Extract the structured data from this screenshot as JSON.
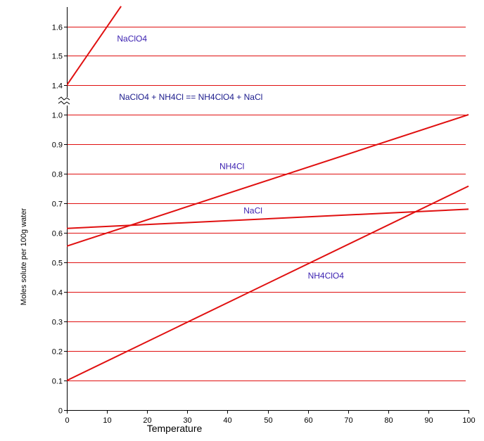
{
  "chart_data": {
    "type": "line",
    "xlabel": "Temperature",
    "ylabel": "Moles solute per 100g water",
    "xlim": [
      0,
      100
    ],
    "ylim": [
      0,
      1.6
    ],
    "axis_break": "between 1.0 and 1.4",
    "x_ticks": [
      "0",
      "10",
      "20",
      "30",
      "40",
      "50",
      "60",
      "70",
      "80",
      "90",
      "100"
    ],
    "y_ticks": [
      {
        "value": 0.0,
        "label": "0"
      },
      {
        "value": 0.1,
        "label": "0.1"
      },
      {
        "value": 0.2,
        "label": "0.2"
      },
      {
        "value": 0.3,
        "label": "0.3"
      },
      {
        "value": 0.4,
        "label": "0.4"
      },
      {
        "value": 0.5,
        "label": "0.5"
      },
      {
        "value": 0.6,
        "label": "0.6"
      },
      {
        "value": 0.7,
        "label": "0.7"
      },
      {
        "value": 0.8,
        "label": "0.8"
      },
      {
        "value": 0.9,
        "label": "0.9"
      },
      {
        "value": 1.0,
        "label": "1.0"
      },
      {
        "value": 1.4,
        "label": "1.4"
      },
      {
        "value": 1.5,
        "label": "1.5"
      },
      {
        "value": 1.6,
        "label": "1.6"
      }
    ],
    "grid": "horizontal",
    "line_color": "#e01010",
    "series": [
      {
        "name": "NaClO4",
        "x": [
          0,
          13.5
        ],
        "y": [
          1.4,
          1.67
        ],
        "label_at": [
          12.5,
          1.55
        ]
      },
      {
        "name": "NH4Cl",
        "x": [
          0,
          100
        ],
        "y": [
          0.555,
          1.0
        ],
        "label_at": [
          38,
          0.815
        ]
      },
      {
        "name": "NaCl",
        "x": [
          0,
          100
        ],
        "y": [
          0.615,
          0.68
        ],
        "label_at": [
          44,
          0.665
        ]
      },
      {
        "name": "NH4ClO4",
        "x": [
          0,
          100
        ],
        "y": [
          0.1,
          0.758
        ],
        "label_at": [
          60,
          0.445
        ]
      }
    ],
    "annotations": [
      {
        "text": "NaClO4  +  NH4Cl  ==  NH4ClO4  +  NaCl",
        "at": [
          13,
          1.35
        ]
      }
    ]
  }
}
